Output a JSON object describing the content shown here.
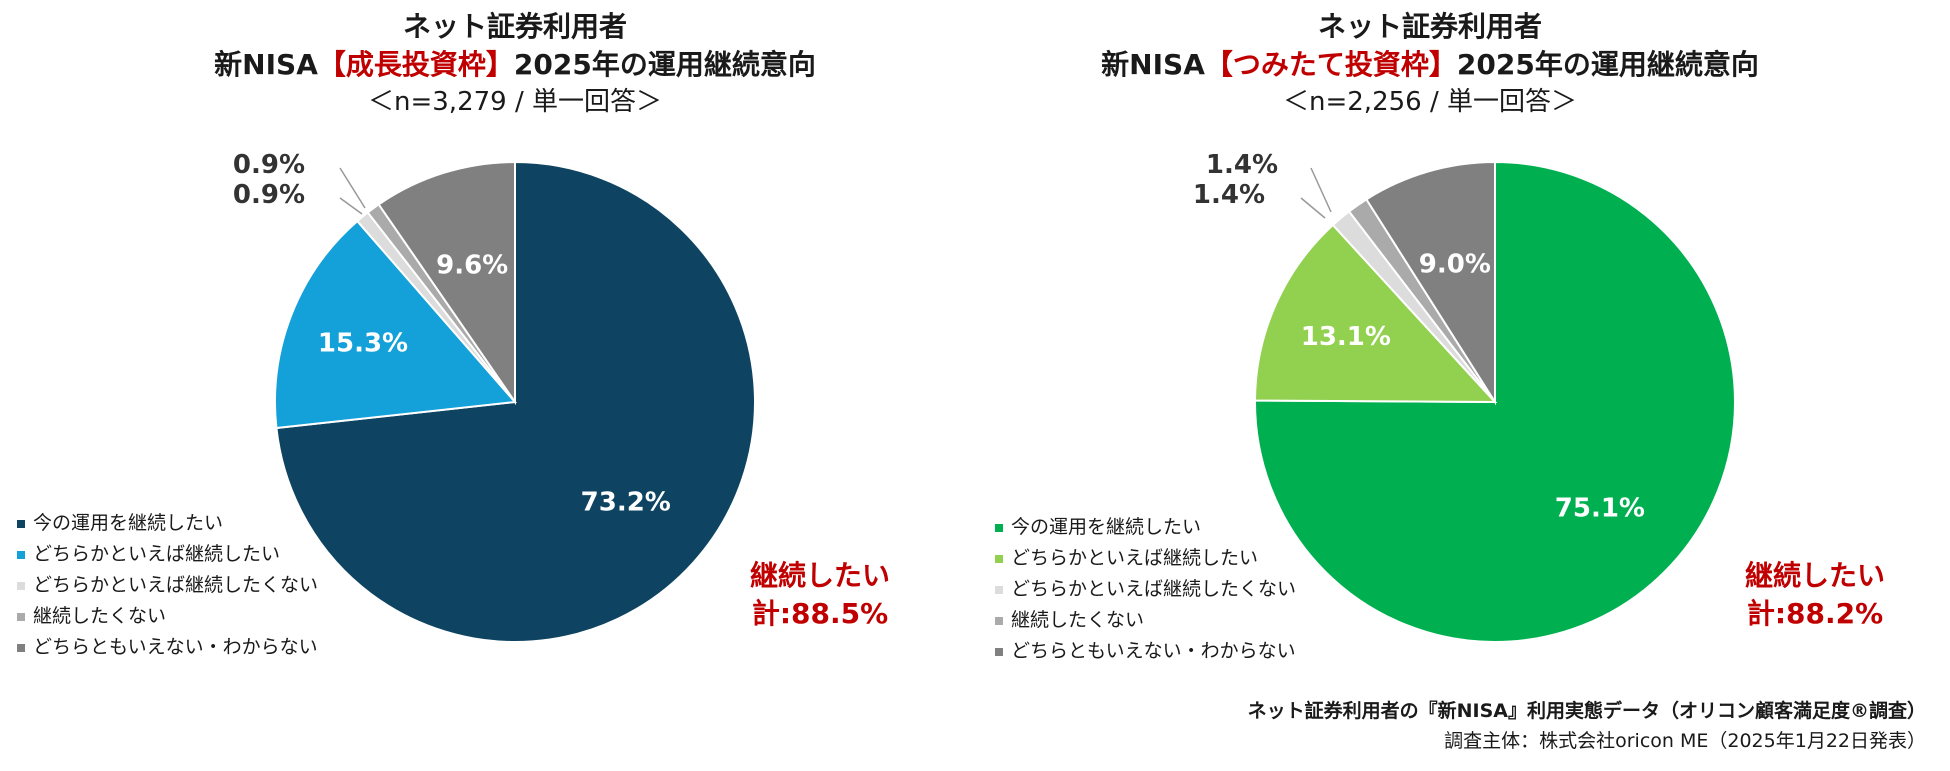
{
  "colors": {
    "accent_red": "#c00000",
    "left": [
      "#0e4461",
      "#14a0d9",
      "#dcdcdc",
      "#aaaaaa",
      "#808080"
    ],
    "right": [
      "#00b050",
      "#92d050",
      "#dcdcdc",
      "#aaaaaa",
      "#808080"
    ]
  },
  "chart_data": [
    {
      "type": "pie",
      "title": "ネット証券利用者",
      "subtitle_prefix": "新NISA",
      "subtitle_accent": "【成長投資枠】",
      "subtitle_suffix": "2025年の運用継続意向",
      "sample": "＜n=3,279 / 単一回答＞",
      "categories": [
        "今の運用を継続したい",
        "どちらかといえば継続したい",
        "どちらかといえば継続したくない",
        "継続したくない",
        "どちらともいえない・わからない"
      ],
      "values": [
        73.2,
        15.3,
        0.9,
        0.9,
        9.6
      ],
      "labels": [
        "73.2%",
        "15.3%",
        "0.9%",
        "0.9%",
        "9.6%"
      ],
      "total_label_line1": "継続したい",
      "total_label_line2": "計:88.5%"
    },
    {
      "type": "pie",
      "title": "ネット証券利用者",
      "subtitle_prefix": "新NISA",
      "subtitle_accent": "【つみたて投資枠】",
      "subtitle_suffix": "2025年の運用継続意向",
      "sample": "＜n=2,256 / 単一回答＞",
      "categories": [
        "今の運用を継続したい",
        "どちらかといえば継続したい",
        "どちらかといえば継続したくない",
        "継続したくない",
        "どちらともいえない・わからない"
      ],
      "values": [
        75.1,
        13.1,
        1.4,
        1.4,
        9.0
      ],
      "labels": [
        "75.1%",
        "13.1%",
        "1.4%",
        "1.4%",
        "9.0%"
      ],
      "total_label_line1": "継続したい",
      "total_label_line2": "計:88.2%"
    }
  ],
  "footer": {
    "line1": "ネット証券利用者の『新NISA』利用実態データ（オリコン顧客満足度®調査）",
    "line2": "調査主体：株式会社oricon ME（2025年1月22日発表）"
  }
}
